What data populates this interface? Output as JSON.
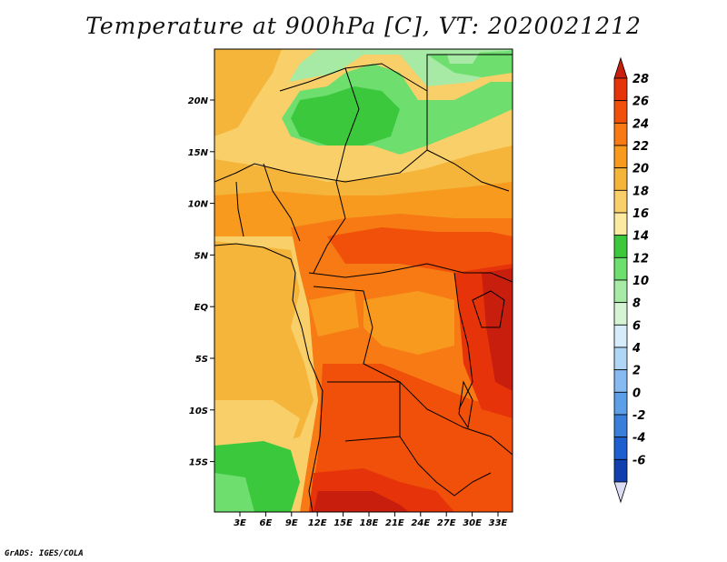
{
  "title": "Temperature at 900hPa [C], VT: 2020021212",
  "credit": "GrADS: IGES/COLA",
  "map": {
    "lat_labels": [
      "20N",
      "15N",
      "10N",
      "5N",
      "EQ",
      "5S",
      "10S",
      "15S"
    ],
    "lon_labels": [
      "3E",
      "6E",
      "9E",
      "12E",
      "15E",
      "18E",
      "21E",
      "24E",
      "27E",
      "30E",
      "33E"
    ]
  },
  "colorbar": {
    "labels": [
      "28",
      "26",
      "24",
      "22",
      "20",
      "18",
      "16",
      "14",
      "12",
      "10",
      "8",
      "6",
      "4",
      "2",
      "0",
      "-2",
      "-4",
      "-6"
    ],
    "colors": [
      "#c81e0e",
      "#e6330a",
      "#f0500a",
      "#f77a14",
      "#f79a1e",
      "#f5b43a",
      "#f8cf68",
      "#fbeaa0",
      "#3cc83c",
      "#6ede6e",
      "#a6eaa6",
      "#d4f4d4",
      "#d6ecfa",
      "#b0d6f6",
      "#86baf0",
      "#5c9ee8",
      "#3a7edc",
      "#1e5fd0",
      "#123fb0",
      "#0a1f80"
    ]
  }
}
